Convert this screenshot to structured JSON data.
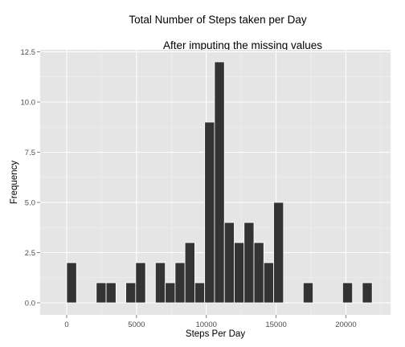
{
  "chart_data": {
    "type": "bar",
    "title": "Total Number of Steps taken per Day",
    "subtitle": "After imputing the missing values",
    "xlabel": "Steps Per Day",
    "ylabel": "Frequency",
    "xlim": [
      -1900,
      23200
    ],
    "ylim": [
      -0.6,
      12.6
    ],
    "x_ticks": [
      0,
      5000,
      10000,
      15000,
      20000
    ],
    "x_tick_labels": [
      "0",
      "5000",
      "10000",
      "15000",
      "20000"
    ],
    "y_ticks": [
      0,
      2.5,
      5,
      7.5,
      10,
      12.5
    ],
    "y_tick_labels": [
      "0.0",
      "2.5",
      "5.0",
      "7.5",
      "10.0",
      "12.5"
    ],
    "bin_width": 706,
    "bins": [
      {
        "x": 353,
        "count": 2
      },
      {
        "x": 2471,
        "count": 1
      },
      {
        "x": 3177,
        "count": 1
      },
      {
        "x": 4589,
        "count": 1
      },
      {
        "x": 5295,
        "count": 2
      },
      {
        "x": 6707,
        "count": 2
      },
      {
        "x": 7413,
        "count": 1
      },
      {
        "x": 8119,
        "count": 2
      },
      {
        "x": 8825,
        "count": 3
      },
      {
        "x": 9531,
        "count": 1
      },
      {
        "x": 10237,
        "count": 9
      },
      {
        "x": 10943,
        "count": 12
      },
      {
        "x": 11649,
        "count": 4
      },
      {
        "x": 12355,
        "count": 3
      },
      {
        "x": 13061,
        "count": 4
      },
      {
        "x": 13767,
        "count": 3
      },
      {
        "x": 14473,
        "count": 2
      },
      {
        "x": 15179,
        "count": 5
      },
      {
        "x": 17297,
        "count": 1
      },
      {
        "x": 20121,
        "count": 1
      },
      {
        "x": 21533,
        "count": 1
      }
    ],
    "colors": {
      "panel": "#e5e5e5",
      "grid_major": "#ffffff",
      "grid_minor": "#f2f2f2",
      "bar_fill": "#333333",
      "bar_edge": "#ffffff"
    },
    "grid": true
  }
}
